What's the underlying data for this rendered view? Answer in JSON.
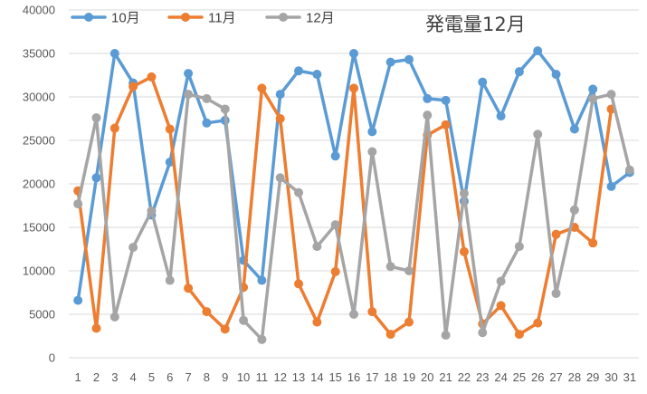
{
  "chart_data": {
    "type": "line",
    "title": "発電量12月",
    "xlabel": "",
    "ylabel": "",
    "ylim": [
      0,
      40000
    ],
    "ytick_step": 5000,
    "grid": true,
    "legend_position": "top-left",
    "categories": [
      "1",
      "2",
      "3",
      "4",
      "5",
      "6",
      "7",
      "8",
      "9",
      "10",
      "11",
      "12",
      "13",
      "14",
      "15",
      "16",
      "17",
      "18",
      "19",
      "20",
      "21",
      "22",
      "23",
      "24",
      "25",
      "26",
      "27",
      "28",
      "29",
      "30",
      "31"
    ],
    "series": [
      {
        "name": "10月",
        "color": "#5B9BD5",
        "values": [
          6600,
          20700,
          35000,
          31600,
          16400,
          22500,
          32700,
          27000,
          27300,
          11200,
          8900,
          30300,
          33000,
          32600,
          23200,
          35000,
          26000,
          34000,
          34300,
          29800,
          29600,
          18000,
          31700,
          27800,
          32900,
          35300,
          32600,
          26300,
          30900,
          19700,
          21300
        ]
      },
      {
        "name": "11月",
        "color": "#ED7D31",
        "values": [
          19200,
          3400,
          26400,
          31200,
          32300,
          26300,
          8000,
          5300,
          3300,
          8100,
          31000,
          27500,
          8500,
          4100,
          9900,
          31000,
          5300,
          2700,
          4100,
          25600,
          26800,
          12200,
          3900,
          6000,
          2700,
          4000,
          14200,
          15000,
          13200,
          28600,
          null
        ]
      },
      {
        "name": "12月",
        "color": "#A5A5A5",
        "values": [
          17700,
          27600,
          4700,
          12700,
          16900,
          8900,
          30300,
          29800,
          28600,
          4300,
          2100,
          20700,
          19000,
          12800,
          15300,
          5000,
          23700,
          10500,
          10000,
          27900,
          2600,
          18900,
          2900,
          8800,
          12800,
          25700,
          7400,
          17000,
          29800,
          30300,
          21600
        ]
      }
    ]
  }
}
